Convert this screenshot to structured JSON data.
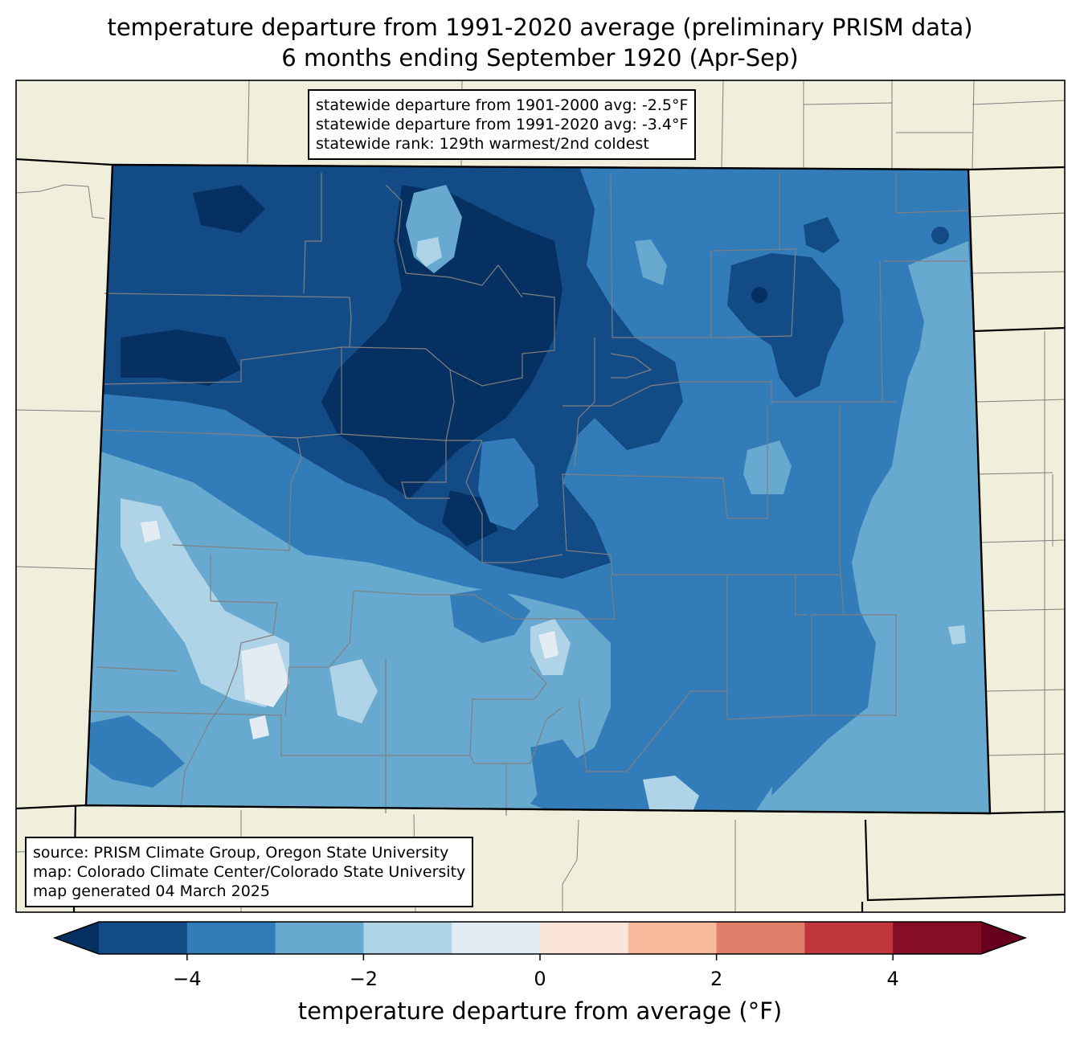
{
  "title": {
    "line1": "temperature departure from 1991-2020 average (preliminary PRISM data)",
    "line2": "6 months ending September 1920 (Apr-Sep)"
  },
  "stats": {
    "line1": "statewide departure from 1901-2000 avg: -2.5°F",
    "line2": "statewide departure from 1991-2020 avg: -3.4°F",
    "line3": "statewide rank: 129th warmest/2nd coldest"
  },
  "credits": {
    "line1": "source: PRISM Climate Group, Oregon State University",
    "line2": "map: Colorado Climate Center/Colorado State University",
    "line3": "map generated 04 March 2025"
  },
  "colorbar": {
    "label": "temperature departure from average (°F)",
    "ticks": [
      "−4",
      "−2",
      "0",
      "2",
      "4"
    ],
    "bins": [
      {
        "from": -5,
        "to": -4,
        "color": "#134b87"
      },
      {
        "from": -4,
        "to": -3,
        "color": "#327cb9"
      },
      {
        "from": -3,
        "to": -2,
        "color": "#68a9d0"
      },
      {
        "from": -2,
        "to": -1,
        "color": "#afd4e7"
      },
      {
        "from": -1,
        "to": 0,
        "color": "#e3ecf3"
      },
      {
        "from": 0,
        "to": 1,
        "color": "#fbe5d9"
      },
      {
        "from": 1,
        "to": 2,
        "color": "#f8b99c"
      },
      {
        "from": 2,
        "to": 3,
        "color": "#e07f69"
      },
      {
        "from": 3,
        "to": 4,
        "color": "#c0363c"
      },
      {
        "from": 4,
        "to": 5,
        "color": "#870c25"
      }
    ],
    "under_color": "#053061",
    "over_color": "#67001f"
  },
  "map_colors": {
    "land": "#efefdb",
    "darkest": "#053061",
    "dark": "#134b87",
    "mid": "#327cb9",
    "light": "#68a9d0",
    "lighter": "#afd4e7",
    "lightest": "#e3ecf3",
    "county_lines": "#808080"
  }
}
